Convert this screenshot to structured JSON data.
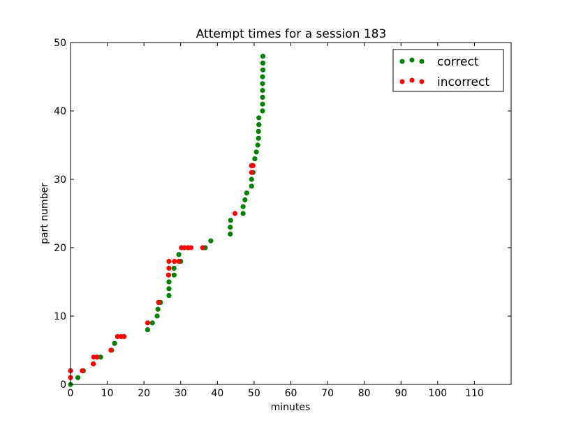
{
  "chart_data": {
    "type": "scatter",
    "title": "Attempt times for a session 183",
    "xlabel": "minutes",
    "ylabel": "part number",
    "xlim": [
      0,
      120
    ],
    "ylim": [
      0,
      50
    ],
    "x_ticks": [
      0,
      10,
      20,
      30,
      40,
      50,
      60,
      70,
      80,
      90,
      100,
      110
    ],
    "y_ticks": [
      0,
      10,
      20,
      30,
      40,
      50
    ],
    "grid": false,
    "legend_position": "top-right",
    "series": [
      {
        "name": "correct",
        "color": "#008000",
        "points": [
          [
            0.0,
            0
          ],
          [
            2.0,
            1
          ],
          [
            3.5,
            2
          ],
          [
            6.2,
            3
          ],
          [
            8.2,
            4
          ],
          [
            11.2,
            5
          ],
          [
            12.0,
            6
          ],
          [
            21.0,
            8
          ],
          [
            22.3,
            9
          ],
          [
            23.6,
            10
          ],
          [
            23.8,
            11
          ],
          [
            24.5,
            12
          ],
          [
            26.8,
            13
          ],
          [
            26.8,
            14
          ],
          [
            26.8,
            15
          ],
          [
            28.2,
            16
          ],
          [
            28.2,
            17
          ],
          [
            30.0,
            18
          ],
          [
            29.5,
            19
          ],
          [
            36.7,
            20
          ],
          [
            38.2,
            21
          ],
          [
            43.5,
            22
          ],
          [
            43.5,
            23
          ],
          [
            43.6,
            24
          ],
          [
            47.0,
            25
          ],
          [
            47.0,
            26
          ],
          [
            47.5,
            27
          ],
          [
            48.0,
            28
          ],
          [
            49.3,
            29
          ],
          [
            49.3,
            30
          ],
          [
            49.7,
            31
          ],
          [
            50.2,
            33
          ],
          [
            50.6,
            34
          ],
          [
            51.0,
            35
          ],
          [
            51.2,
            36
          ],
          [
            51.2,
            37
          ],
          [
            51.3,
            38
          ],
          [
            51.3,
            39
          ],
          [
            52.3,
            40
          ],
          [
            52.3,
            41
          ],
          [
            52.3,
            42
          ],
          [
            52.3,
            43
          ],
          [
            52.3,
            44
          ],
          [
            52.3,
            45
          ],
          [
            52.4,
            46
          ],
          [
            52.4,
            47
          ],
          [
            52.4,
            48
          ]
        ]
      },
      {
        "name": "incorrect",
        "color": "#ff0000",
        "points": [
          [
            0.0,
            1
          ],
          [
            0.0,
            2
          ],
          [
            3.2,
            2
          ],
          [
            6.2,
            3
          ],
          [
            6.3,
            4
          ],
          [
            7.2,
            4
          ],
          [
            11.0,
            5
          ],
          [
            12.8,
            7
          ],
          [
            13.8,
            7
          ],
          [
            14.6,
            7
          ],
          [
            21.0,
            9
          ],
          [
            24.0,
            12
          ],
          [
            26.7,
            16
          ],
          [
            26.8,
            17
          ],
          [
            26.8,
            18
          ],
          [
            28.3,
            18
          ],
          [
            29.5,
            18
          ],
          [
            30.2,
            20
          ],
          [
            31.0,
            20
          ],
          [
            32.0,
            20
          ],
          [
            32.8,
            20
          ],
          [
            36.0,
            20
          ],
          [
            44.8,
            25
          ],
          [
            49.3,
            31
          ],
          [
            49.3,
            32
          ],
          [
            49.7,
            32
          ]
        ]
      }
    ]
  }
}
